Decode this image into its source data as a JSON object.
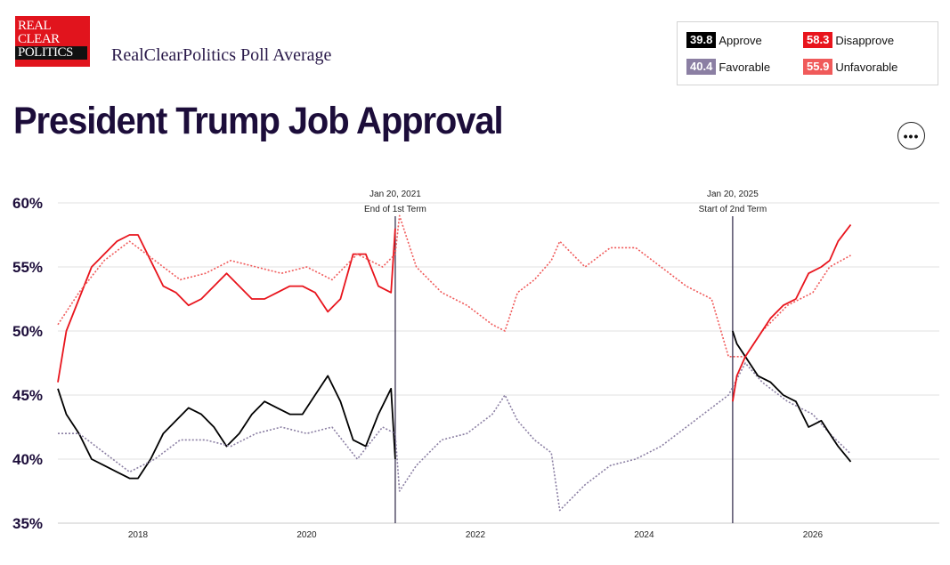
{
  "header": {
    "logo_lines": [
      "REAL",
      "CLEAR",
      "POLITICS"
    ],
    "brand": "RealClearPolitics Poll Average",
    "title": "President Trump Job Approval",
    "more_label": "•••"
  },
  "legend": [
    {
      "value": "39.8",
      "label": "Approve",
      "color": "#000000"
    },
    {
      "value": "58.3",
      "label": "Disapprove",
      "color": "#e8141c"
    },
    {
      "value": "40.4",
      "label": "Favorable",
      "color": "#8b7fa3"
    },
    {
      "value": "55.9",
      "label": "Unfavorable",
      "color": "#f05a5a"
    }
  ],
  "chart_data": {
    "type": "line",
    "ylim": [
      35,
      60
    ],
    "xlim": [
      2017.05,
      2027.5
    ],
    "yticks": [
      60,
      55,
      50,
      45,
      40,
      35
    ],
    "ytick_labels": [
      "60%",
      "55%",
      "50%",
      "45%",
      "40%",
      "35%"
    ],
    "xticks": [
      2018,
      2020,
      2022,
      2024,
      2026
    ],
    "xtick_labels": [
      "2018",
      "2020",
      "2022",
      "2024",
      "2026"
    ],
    "grid": true,
    "annotations": [
      {
        "x": 2021.05,
        "line1": "Jan 20, 2021",
        "line2": "End of 1st Term"
      },
      {
        "x": 2025.05,
        "line1": "Jan 20, 2025",
        "line2": "Start of 2nd Term"
      }
    ],
    "series": [
      {
        "name": "Approve",
        "color": "#000000",
        "style": "solid",
        "x": [
          2017.05,
          2017.15,
          2017.3,
          2017.45,
          2017.6,
          2017.75,
          2017.9,
          2018.0,
          2018.15,
          2018.3,
          2018.45,
          2018.6,
          2018.75,
          2018.9,
          2019.05,
          2019.2,
          2019.35,
          2019.5,
          2019.65,
          2019.8,
          2019.95,
          2020.1,
          2020.25,
          2020.4,
          2020.55,
          2020.7,
          2020.85,
          2021.0,
          2021.05
        ],
        "y": [
          45.5,
          43.5,
          42.0,
          40.0,
          39.5,
          39.0,
          38.5,
          38.5,
          40.0,
          42.0,
          43.0,
          44.0,
          43.5,
          42.5,
          41.0,
          42.0,
          43.5,
          44.5,
          44.0,
          43.5,
          43.5,
          45.0,
          46.5,
          44.5,
          41.5,
          41.0,
          43.5,
          45.5,
          40.0
        ]
      },
      {
        "name": "Disapprove",
        "color": "#e8141c",
        "style": "solid",
        "x": [
          2017.05,
          2017.15,
          2017.3,
          2017.45,
          2017.6,
          2017.75,
          2017.9,
          2018.0,
          2018.15,
          2018.3,
          2018.45,
          2018.6,
          2018.75,
          2018.9,
          2019.05,
          2019.2,
          2019.35,
          2019.5,
          2019.65,
          2019.8,
          2019.95,
          2020.1,
          2020.25,
          2020.4,
          2020.55,
          2020.7,
          2020.85,
          2021.0,
          2021.05
        ],
        "y": [
          46.0,
          50.0,
          52.5,
          55.0,
          56.0,
          57.0,
          57.5,
          57.5,
          55.5,
          53.5,
          53.0,
          52.0,
          52.5,
          53.5,
          54.5,
          53.5,
          52.5,
          52.5,
          53.0,
          53.5,
          53.5,
          53.0,
          51.5,
          52.5,
          56.0,
          56.0,
          53.5,
          53.0,
          58.0
        ]
      },
      {
        "name": "Favorable",
        "color": "#8b7fa3",
        "style": "dotted",
        "x": [
          2017.05,
          2017.3,
          2017.6,
          2017.9,
          2018.2,
          2018.5,
          2018.8,
          2019.1,
          2019.4,
          2019.7,
          2020.0,
          2020.3,
          2020.6,
          2020.9,
          2021.05,
          2021.1,
          2021.3,
          2021.6,
          2021.9,
          2022.2,
          2022.35,
          2022.5,
          2022.7,
          2022.9,
          2023.0,
          2023.3,
          2023.6,
          2023.9,
          2024.2,
          2024.5,
          2024.8,
          2025.0,
          2025.2,
          2025.4,
          2025.7,
          2026.0,
          2026.2,
          2026.45
        ],
        "y": [
          42.0,
          42.0,
          40.5,
          39.0,
          40.0,
          41.5,
          41.5,
          41.0,
          42.0,
          42.5,
          42.0,
          42.5,
          40.0,
          42.5,
          42.0,
          37.5,
          39.5,
          41.5,
          42.0,
          43.5,
          45.0,
          43.0,
          41.5,
          40.5,
          36.0,
          38.0,
          39.5,
          40.0,
          41.0,
          42.5,
          44.0,
          45.0,
          47.5,
          46.0,
          44.5,
          43.5,
          42.0,
          40.4
        ]
      },
      {
        "name": "Unfavorable",
        "color": "#f05a5a",
        "style": "dotted",
        "x": [
          2017.05,
          2017.3,
          2017.6,
          2017.9,
          2018.2,
          2018.5,
          2018.8,
          2019.1,
          2019.4,
          2019.7,
          2020.0,
          2020.3,
          2020.6,
          2020.9,
          2021.05,
          2021.1,
          2021.3,
          2021.6,
          2021.9,
          2022.2,
          2022.35,
          2022.5,
          2022.7,
          2022.9,
          2023.0,
          2023.3,
          2023.6,
          2023.9,
          2024.2,
          2024.5,
          2024.8,
          2025.0,
          2025.2,
          2025.4,
          2025.7,
          2026.0,
          2026.2,
          2026.45
        ],
        "y": [
          50.5,
          53.0,
          55.5,
          57.0,
          55.5,
          54.0,
          54.5,
          55.5,
          55.0,
          54.5,
          55.0,
          54.0,
          56.0,
          55.0,
          56.0,
          59.0,
          55.0,
          53.0,
          52.0,
          50.5,
          50.0,
          53.0,
          54.0,
          55.5,
          57.0,
          55.0,
          56.5,
          56.5,
          55.0,
          53.5,
          52.5,
          48.0,
          48.0,
          50.0,
          52.0,
          53.0,
          55.0,
          55.9
        ]
      },
      {
        "name": "Approve",
        "color": "#000000",
        "style": "solid",
        "x": [
          2025.05,
          2025.1,
          2025.2,
          2025.35,
          2025.5,
          2025.65,
          2025.8,
          2025.95,
          2026.1,
          2026.2,
          2026.3,
          2026.45
        ],
        "y": [
          50.0,
          49.0,
          48.0,
          46.5,
          46.0,
          45.0,
          44.5,
          42.5,
          43.0,
          42.0,
          41.0,
          39.8
        ]
      },
      {
        "name": "Disapprove",
        "color": "#e8141c",
        "style": "solid",
        "x": [
          2025.05,
          2025.1,
          2025.2,
          2025.35,
          2025.5,
          2025.65,
          2025.8,
          2025.95,
          2026.1,
          2026.2,
          2026.3,
          2026.45
        ],
        "y": [
          44.5,
          46.5,
          48.0,
          49.5,
          51.0,
          52.0,
          52.5,
          54.5,
          55.0,
          55.5,
          57.0,
          58.3
        ]
      }
    ]
  }
}
